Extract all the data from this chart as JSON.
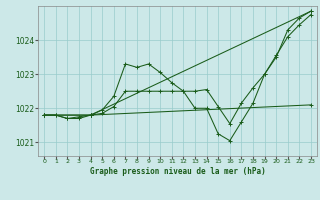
{
  "title": "Graphe pression niveau de la mer (hPa)",
  "bg_color": "#cce8e8",
  "grid_color": "#99cccc",
  "line_color": "#1a5c1a",
  "x_min": -0.5,
  "x_max": 23.5,
  "y_min": 1020.6,
  "y_max": 1025.0,
  "y_ticks": [
    1021,
    1022,
    1023,
    1024
  ],
  "x_ticks": [
    0,
    1,
    2,
    3,
    4,
    5,
    6,
    7,
    8,
    9,
    10,
    11,
    12,
    13,
    14,
    15,
    16,
    17,
    18,
    19,
    20,
    21,
    22,
    23
  ],
  "lines": [
    {
      "x": [
        0,
        1,
        2,
        3,
        4,
        5,
        6,
        7,
        8,
        9,
        10,
        11,
        12,
        13,
        14,
        15,
        16,
        17,
        18,
        19,
        20,
        21,
        22,
        23
      ],
      "y": [
        1021.8,
        1021.8,
        1021.7,
        1021.7,
        1021.8,
        1021.95,
        1022.35,
        1023.3,
        1023.2,
        1023.3,
        1023.05,
        1022.75,
        1022.5,
        1022.0,
        1022.0,
        1021.25,
        1021.05,
        1021.6,
        1022.15,
        1023.0,
        1023.5,
        1024.3,
        1024.65,
        1024.85
      ]
    },
    {
      "x": [
        0,
        1,
        2,
        3,
        4,
        5,
        6,
        7,
        8,
        9,
        10,
        11,
        12,
        13,
        14,
        15,
        16,
        17,
        18,
        19,
        20,
        21,
        22,
        23
      ],
      "y": [
        1021.8,
        1021.8,
        1021.7,
        1021.75,
        1021.8,
        1021.85,
        1022.05,
        1022.5,
        1022.5,
        1022.5,
        1022.5,
        1022.5,
        1022.5,
        1022.5,
        1022.55,
        1022.05,
        1021.55,
        1022.15,
        1022.6,
        1023.0,
        1023.55,
        1024.1,
        1024.45,
        1024.75
      ]
    },
    {
      "x": [
        0,
        4,
        23
      ],
      "y": [
        1021.8,
        1021.8,
        1024.85
      ]
    },
    {
      "x": [
        0,
        4,
        23
      ],
      "y": [
        1021.8,
        1021.8,
        1022.1
      ]
    }
  ]
}
